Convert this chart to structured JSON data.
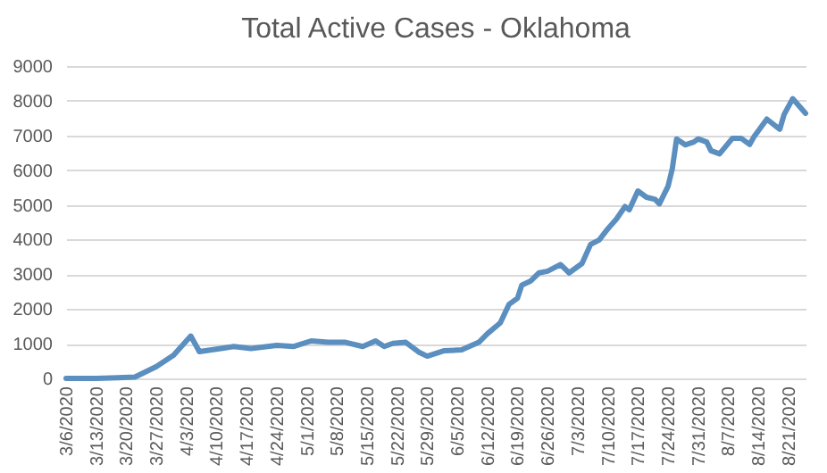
{
  "chart_data": {
    "type": "line",
    "title": "Total Active Cases - Oklahoma",
    "x": [
      "2020-03-06",
      "2020-03-13",
      "2020-03-18",
      "2020-03-22",
      "2020-03-27",
      "2020-03-31",
      "2020-04-04",
      "2020-04-06",
      "2020-04-11",
      "2020-04-14",
      "2020-04-18",
      "2020-04-24",
      "2020-04-28",
      "2020-05-02",
      "2020-05-06",
      "2020-05-10",
      "2020-05-14",
      "2020-05-17",
      "2020-05-19",
      "2020-05-21",
      "2020-05-24",
      "2020-05-27",
      "2020-05-29",
      "2020-06-02",
      "2020-06-06",
      "2020-06-10",
      "2020-06-12",
      "2020-06-15",
      "2020-06-17",
      "2020-06-19",
      "2020-06-20",
      "2020-06-22",
      "2020-06-24",
      "2020-06-26",
      "2020-06-29",
      "2020-07-01",
      "2020-07-04",
      "2020-07-06",
      "2020-07-08",
      "2020-07-10",
      "2020-07-12",
      "2020-07-14",
      "2020-07-15",
      "2020-07-17",
      "2020-07-19",
      "2020-07-21",
      "2020-07-22",
      "2020-07-24",
      "2020-07-25",
      "2020-07-26",
      "2020-07-28",
      "2020-07-30",
      "2020-07-31",
      "2020-08-02",
      "2020-08-03",
      "2020-08-05",
      "2020-08-08",
      "2020-08-10",
      "2020-08-12",
      "2020-08-13",
      "2020-08-16",
      "2020-08-19",
      "2020-08-20",
      "2020-08-22",
      "2020-08-25"
    ],
    "series": [
      {
        "color": "#5b8fc0",
        "values": [
          0,
          0,
          20,
          40,
          340,
          670,
          1220,
          770,
          860,
          920,
          860,
          950,
          920,
          1080,
          1040,
          1040,
          920,
          1080,
          920,
          1010,
          1040,
          760,
          640,
          800,
          820,
          1040,
          1290,
          1600,
          2130,
          2310,
          2690,
          2800,
          3040,
          3090,
          3280,
          3040,
          3310,
          3860,
          3990,
          4310,
          4590,
          4950,
          4860,
          5400,
          5220,
          5160,
          5030,
          5530,
          6040,
          6900,
          6730,
          6810,
          6900,
          6810,
          6560,
          6470,
          6920,
          6920,
          6740,
          6960,
          7470,
          7180,
          7600,
          8060,
          7640
        ]
      }
    ],
    "xlim": [
      "2020-03-06",
      "2020-08-25"
    ],
    "xticks": [
      {
        "value": "2020-03-06",
        "label": "3/6/2020"
      },
      {
        "value": "2020-03-13",
        "label": "3/13/2020"
      },
      {
        "value": "2020-03-20",
        "label": "3/20/2020"
      },
      {
        "value": "2020-03-27",
        "label": "3/27/2020"
      },
      {
        "value": "2020-04-03",
        "label": "4/3/2020"
      },
      {
        "value": "2020-04-10",
        "label": "4/10/2020"
      },
      {
        "value": "2020-04-17",
        "label": "4/17/2020"
      },
      {
        "value": "2020-04-24",
        "label": "4/24/2020"
      },
      {
        "value": "2020-05-01",
        "label": "5/1/2020"
      },
      {
        "value": "2020-05-08",
        "label": "5/8/2020"
      },
      {
        "value": "2020-05-15",
        "label": "5/15/2020"
      },
      {
        "value": "2020-05-22",
        "label": "5/22/2020"
      },
      {
        "value": "2020-05-29",
        "label": "5/29/2020"
      },
      {
        "value": "2020-06-05",
        "label": "6/5/2020"
      },
      {
        "value": "2020-06-12",
        "label": "6/12/2020"
      },
      {
        "value": "2020-06-19",
        "label": "6/19/2020"
      },
      {
        "value": "2020-06-26",
        "label": "6/26/2020"
      },
      {
        "value": "2020-07-03",
        "label": "7/3/2020"
      },
      {
        "value": "2020-07-10",
        "label": "7/10/2020"
      },
      {
        "value": "2020-07-17",
        "label": "7/17/2020"
      },
      {
        "value": "2020-07-24",
        "label": "7/24/2020"
      },
      {
        "value": "2020-07-31",
        "label": "7/31/2020"
      },
      {
        "value": "2020-08-07",
        "label": "8/7/2020"
      },
      {
        "value": "2020-08-14",
        "label": "8/14/2020"
      },
      {
        "value": "2020-08-21",
        "label": "8/21/2020"
      }
    ],
    "ylim": [
      0,
      9000
    ],
    "yticks": [
      0,
      1000,
      2000,
      3000,
      4000,
      5000,
      6000,
      7000,
      8000,
      9000
    ],
    "grid": "y",
    "legend": false,
    "marker": "none",
    "line_style": "solid"
  }
}
